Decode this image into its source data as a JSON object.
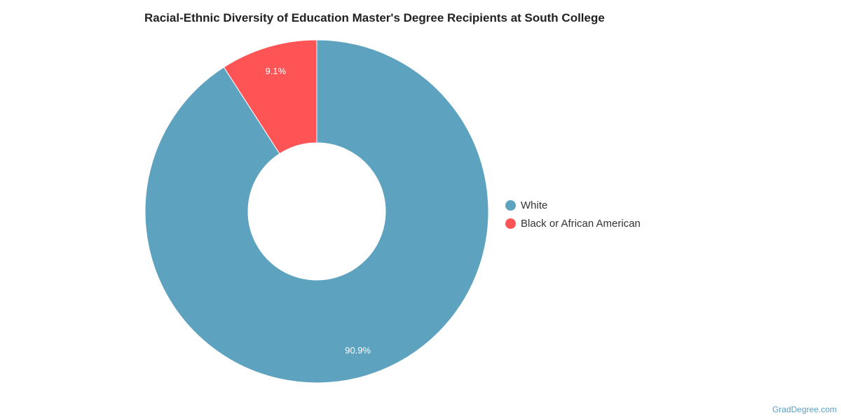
{
  "chart_data": {
    "type": "pie",
    "title": "Racial-Ethnic Diversity of Education Master's Degree Recipients at South College",
    "categories": [
      "White",
      "Black or African American"
    ],
    "values": [
      90.9,
      9.1
    ],
    "value_labels": [
      "90.9%",
      "9.1%"
    ],
    "colors": [
      "#5da2be",
      "#fe5456"
    ],
    "style": "donut",
    "legend_position": "right"
  },
  "footer": {
    "source": "GradDegree.com"
  }
}
